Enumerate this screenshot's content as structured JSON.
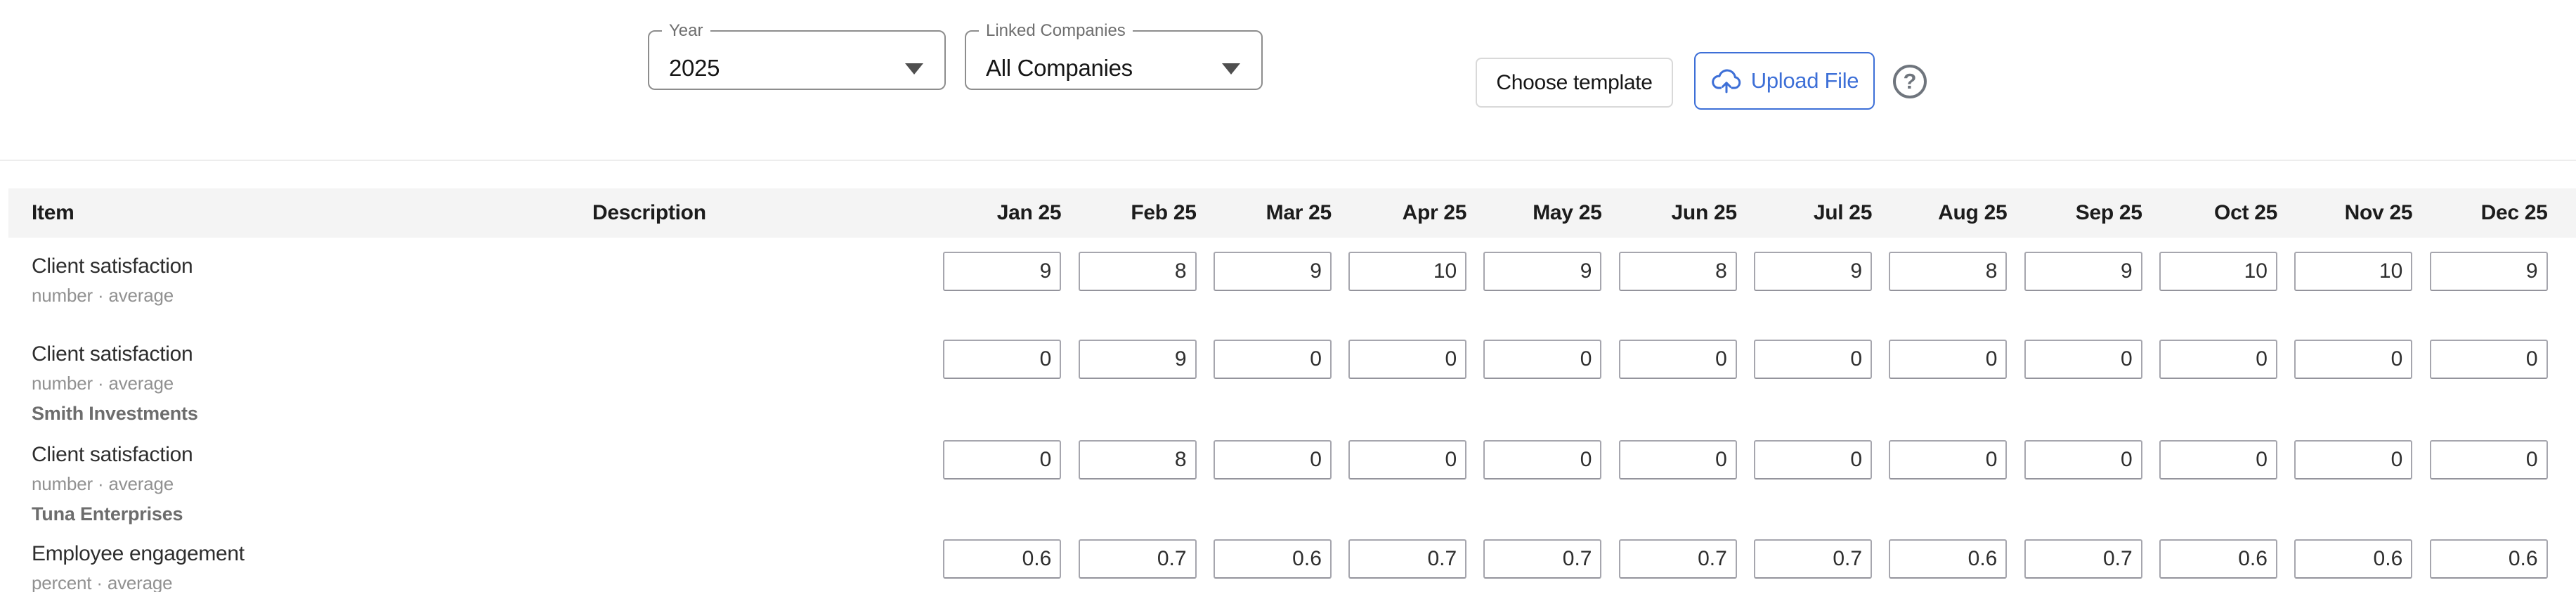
{
  "controls": {
    "year": {
      "label": "Year",
      "value": "2025"
    },
    "linked_companies": {
      "label": "Linked Companies",
      "value": "All Companies"
    },
    "buttons": {
      "choose_template": "Choose template",
      "upload_file": "Upload File"
    },
    "icons": {
      "upload": "cloud-upload-icon",
      "help": "question-mark-icon",
      "help_glyph": "?",
      "dropdown": "chevron-down-icon"
    }
  },
  "colors": {
    "accent_blue": "#3d6fd7",
    "header_bg": "#f4f4f4",
    "input_border_gray": "#a6a6ae",
    "select_border_gray": "#8d8d8d",
    "text_dark": "#2e2e2e",
    "text_gray": "#919191",
    "help_gray": "#6f757d"
  },
  "table": {
    "columns": [
      "Item",
      "Description",
      "Jan 25",
      "Feb 25",
      "Mar 25",
      "Apr 25",
      "May 25",
      "Jun 25",
      "Jul 25",
      "Aug 25",
      "Sep 25",
      "Oct 25",
      "Nov 25",
      "Dec 25"
    ],
    "rows": [
      {
        "item": "Client satisfaction",
        "unit": "number · average",
        "company": "",
        "description": "",
        "values": [
          "9",
          "8",
          "9",
          "10",
          "9",
          "8",
          "9",
          "8",
          "9",
          "10",
          "10",
          "9"
        ]
      },
      {
        "item": "Client satisfaction",
        "unit": "number · average",
        "company": "Smith Investments",
        "description": "",
        "values": [
          "0",
          "9",
          "0",
          "0",
          "0",
          "0",
          "0",
          "0",
          "0",
          "0",
          "0",
          "0"
        ]
      },
      {
        "item": "Client satisfaction",
        "unit": "number · average",
        "company": "Tuna Enterprises",
        "description": "",
        "values": [
          "0",
          "8",
          "0",
          "0",
          "0",
          "0",
          "0",
          "0",
          "0",
          "0",
          "0",
          "0"
        ]
      },
      {
        "item": "Employee engagement",
        "unit": "percent · average",
        "company": "",
        "description": "",
        "values": [
          "0.6",
          "0.7",
          "0.6",
          "0.7",
          "0.7",
          "0.7",
          "0.7",
          "0.6",
          "0.7",
          "0.6",
          "0.6",
          "0.6"
        ]
      }
    ]
  }
}
